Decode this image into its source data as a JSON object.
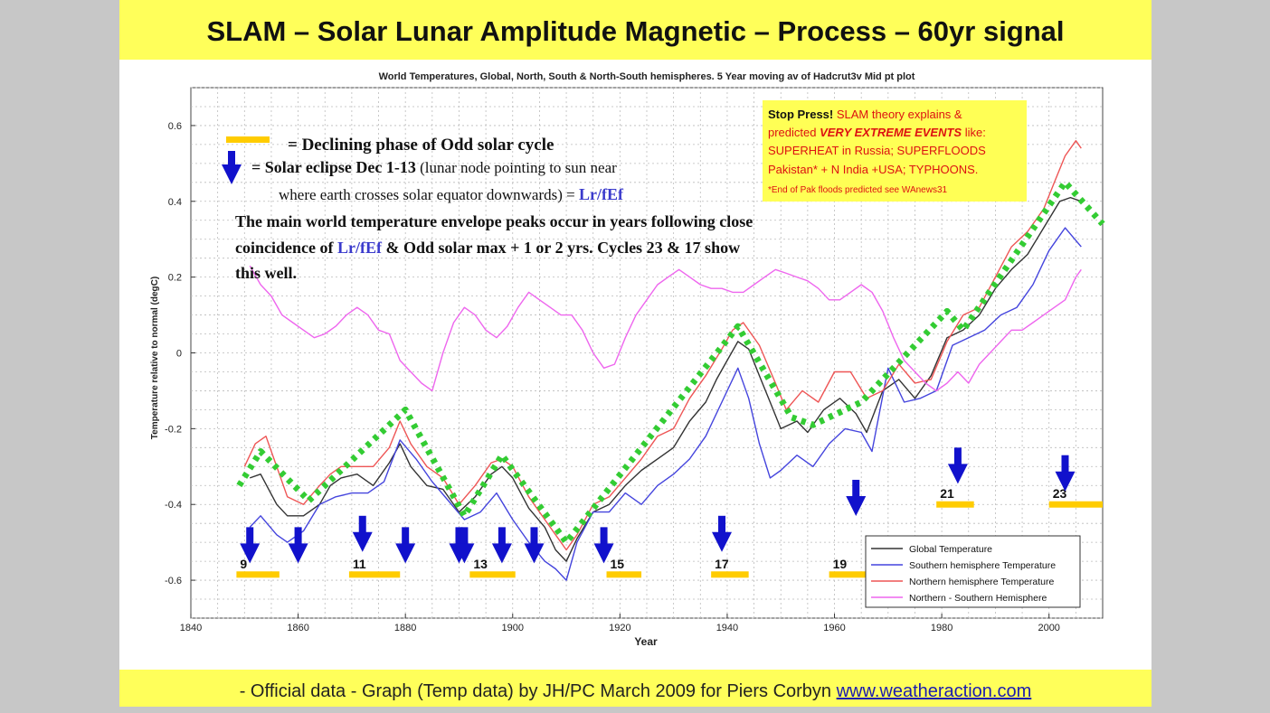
{
  "banner": {
    "title": "SLAM – Solar Lunar Amplitude Magnetic – Process – 60yr signal",
    "footer_text": "- Official data - Graph (Temp data) by JH/PC March 2009 for Piers Corbyn ",
    "footer_link": "www.weatheraction.com"
  },
  "chart_data": {
    "type": "line",
    "title": "World Temperatures, Global, North, South & North-South hemispheres. 5 Year moving av of Hadcrut3v Mid pt plot",
    "xlabel": "Year",
    "ylabel": "Temperature relative to normal (degC)",
    "xlim": [
      1840,
      2010
    ],
    "ylim": [
      -0.7,
      0.7
    ],
    "xticks": [
      1840,
      1860,
      1880,
      1900,
      1920,
      1940,
      1960,
      1980,
      2000
    ],
    "yticks": [
      -0.6,
      -0.4,
      -0.2,
      0,
      0.2,
      0.4,
      0.6
    ],
    "grid": true,
    "legend_position": "bottom-right",
    "series": [
      {
        "name": "Global Temperature",
        "color": "#333333",
        "x": [
          1851,
          1853,
          1856,
          1858,
          1861,
          1864,
          1866,
          1868,
          1871,
          1874,
          1877,
          1879,
          1881,
          1884,
          1887,
          1890,
          1893,
          1896,
          1898,
          1900,
          1903,
          1906,
          1908,
          1910,
          1912,
          1915,
          1918,
          1921,
          1924,
          1927,
          1930,
          1933,
          1936,
          1938,
          1940,
          1942,
          1944,
          1946,
          1948,
          1950,
          1953,
          1955,
          1958,
          1961,
          1964,
          1966,
          1969,
          1972,
          1975,
          1978,
          1981,
          1984,
          1987,
          1990,
          1993,
          1996,
          1999,
          2002,
          2004,
          2006
        ],
        "y": [
          -0.33,
          -0.32,
          -0.4,
          -0.43,
          -0.43,
          -0.4,
          -0.35,
          -0.33,
          -0.32,
          -0.35,
          -0.29,
          -0.24,
          -0.3,
          -0.35,
          -0.36,
          -0.42,
          -0.38,
          -0.32,
          -0.3,
          -0.33,
          -0.41,
          -0.46,
          -0.52,
          -0.55,
          -0.49,
          -0.42,
          -0.4,
          -0.35,
          -0.31,
          -0.28,
          -0.25,
          -0.18,
          -0.13,
          -0.07,
          -0.02,
          0.03,
          0.01,
          -0.06,
          -0.13,
          -0.2,
          -0.18,
          -0.21,
          -0.15,
          -0.12,
          -0.16,
          -0.21,
          -0.1,
          -0.07,
          -0.12,
          -0.06,
          0.04,
          0.06,
          0.1,
          0.17,
          0.22,
          0.26,
          0.33,
          0.4,
          0.41,
          0.4
        ]
      },
      {
        "name": "Southern hemisphere Temperature",
        "color": "#4444dd",
        "x": [
          1851,
          1853,
          1856,
          1858,
          1861,
          1864,
          1867,
          1870,
          1873,
          1876,
          1879,
          1882,
          1885,
          1888,
          1891,
          1894,
          1897,
          1900,
          1903,
          1906,
          1908,
          1910,
          1912,
          1915,
          1918,
          1921,
          1924,
          1927,
          1930,
          1933,
          1936,
          1939,
          1942,
          1944,
          1946,
          1948,
          1950,
          1953,
          1956,
          1959,
          1962,
          1965,
          1967,
          1970,
          1973,
          1976,
          1979,
          1982,
          1985,
          1988,
          1991,
          1994,
          1997,
          2000,
          2003,
          2006
        ],
        "y": [
          -0.46,
          -0.43,
          -0.48,
          -0.5,
          -0.47,
          -0.4,
          -0.38,
          -0.37,
          -0.37,
          -0.34,
          -0.23,
          -0.28,
          -0.34,
          -0.39,
          -0.44,
          -0.42,
          -0.37,
          -0.44,
          -0.5,
          -0.55,
          -0.57,
          -0.6,
          -0.5,
          -0.42,
          -0.42,
          -0.37,
          -0.4,
          -0.35,
          -0.32,
          -0.28,
          -0.22,
          -0.13,
          -0.04,
          -0.12,
          -0.24,
          -0.33,
          -0.31,
          -0.27,
          -0.3,
          -0.24,
          -0.2,
          -0.21,
          -0.26,
          -0.04,
          -0.13,
          -0.12,
          -0.1,
          0.02,
          0.04,
          0.06,
          0.1,
          0.12,
          0.18,
          0.27,
          0.33,
          0.28
        ]
      },
      {
        "name": "Northern hemisphere Temperature",
        "color": "#ee5555",
        "x": [
          1850,
          1852,
          1854,
          1856,
          1858,
          1861,
          1864,
          1866,
          1868,
          1871,
          1874,
          1877,
          1879,
          1881,
          1884,
          1887,
          1890,
          1893,
          1896,
          1898,
          1900,
          1903,
          1906,
          1908,
          1910,
          1912,
          1915,
          1918,
          1921,
          1924,
          1927,
          1930,
          1933,
          1936,
          1939,
          1941,
          1943,
          1946,
          1949,
          1951,
          1954,
          1957,
          1960,
          1963,
          1966,
          1969,
          1972,
          1975,
          1978,
          1981,
          1984,
          1987,
          1990,
          1993,
          1996,
          1999,
          2001,
          2003,
          2005,
          2006
        ],
        "y": [
          -0.3,
          -0.24,
          -0.22,
          -0.3,
          -0.38,
          -0.4,
          -0.35,
          -0.32,
          -0.3,
          -0.3,
          -0.3,
          -0.25,
          -0.18,
          -0.24,
          -0.3,
          -0.33,
          -0.4,
          -0.35,
          -0.29,
          -0.28,
          -0.3,
          -0.38,
          -0.44,
          -0.48,
          -0.52,
          -0.48,
          -0.4,
          -0.38,
          -0.33,
          -0.28,
          -0.22,
          -0.2,
          -0.12,
          -0.06,
          0.01,
          0.06,
          0.08,
          0.02,
          -0.08,
          -0.15,
          -0.1,
          -0.13,
          -0.05,
          -0.05,
          -0.12,
          -0.1,
          -0.03,
          -0.08,
          -0.07,
          0.03,
          0.1,
          0.12,
          0.2,
          0.28,
          0.32,
          0.38,
          0.45,
          0.52,
          0.56,
          0.54
        ]
      },
      {
        "name": "Northern - Southern Hemisphere",
        "color": "#ee66ee",
        "x": [
          1851,
          1853,
          1855,
          1857,
          1859,
          1861,
          1863,
          1865,
          1867,
          1869,
          1871,
          1873,
          1875,
          1877,
          1879,
          1881,
          1883,
          1885,
          1887,
          1889,
          1891,
          1893,
          1895,
          1897,
          1899,
          1901,
          1903,
          1905,
          1907,
          1909,
          1911,
          1913,
          1915,
          1917,
          1919,
          1921,
          1923,
          1925,
          1927,
          1929,
          1931,
          1933,
          1935,
          1937,
          1939,
          1941,
          1943,
          1945,
          1947,
          1949,
          1951,
          1953,
          1955,
          1957,
          1959,
          1961,
          1963,
          1965,
          1967,
          1969,
          1971,
          1973,
          1975,
          1977,
          1979,
          1981,
          1983,
          1985,
          1987,
          1989,
          1991,
          1993,
          1995,
          1997,
          1999,
          2001,
          2003,
          2005,
          2006
        ],
        "y": [
          0.23,
          0.18,
          0.15,
          0.1,
          0.08,
          0.06,
          0.04,
          0.05,
          0.07,
          0.1,
          0.12,
          0.1,
          0.06,
          0.05,
          -0.02,
          -0.05,
          -0.08,
          -0.1,
          0.0,
          0.08,
          0.12,
          0.1,
          0.06,
          0.04,
          0.07,
          0.12,
          0.16,
          0.14,
          0.12,
          0.1,
          0.1,
          0.06,
          0.0,
          -0.04,
          -0.03,
          0.04,
          0.1,
          0.14,
          0.18,
          0.2,
          0.22,
          0.2,
          0.18,
          0.17,
          0.17,
          0.16,
          0.16,
          0.18,
          0.2,
          0.22,
          0.21,
          0.2,
          0.19,
          0.17,
          0.14,
          0.14,
          0.16,
          0.18,
          0.16,
          0.11,
          0.04,
          -0.02,
          -0.05,
          -0.08,
          -0.1,
          -0.08,
          -0.05,
          -0.08,
          -0.03,
          0.0,
          0.03,
          0.06,
          0.06,
          0.08,
          0.1,
          0.12,
          0.14,
          0.2,
          0.22
        ]
      },
      {
        "name": "",
        "color": "#33cc33",
        "style": "dotted",
        "x": [
          1849,
          1853,
          1862,
          1880,
          1891,
          1898,
          1910,
          1942,
          1952,
          1956,
          1965,
          1981,
          1984,
          2003,
          2010
        ],
        "y": [
          -0.35,
          -0.26,
          -0.39,
          -0.15,
          -0.43,
          -0.27,
          -0.5,
          0.07,
          -0.17,
          -0.19,
          -0.13,
          0.11,
          0.06,
          0.45,
          0.34
        ]
      }
    ],
    "eclipse_arrows_years": [
      1851,
      1860,
      1872,
      1880,
      1890,
      1891,
      1898,
      1904,
      1917,
      1939,
      1964,
      1983,
      2003
    ],
    "odd_cycles": [
      {
        "label": "9",
        "start": 1848.5,
        "end": 1856.5
      },
      {
        "label": "11",
        "start": 1869.5,
        "end": 1879
      },
      {
        "label": "13",
        "start": 1892,
        "end": 1900.5
      },
      {
        "label": "15",
        "start": 1917.5,
        "end": 1924
      },
      {
        "label": "17",
        "start": 1937,
        "end": 1944
      },
      {
        "label": "19",
        "start": 1959,
        "end": 1966
      },
      {
        "label": "21",
        "start": 1979,
        "end": 1986
      },
      {
        "label": "23",
        "start": 2000,
        "end": 2010
      }
    ]
  },
  "annotations": {
    "key_bar_text": "= Declining phase of Odd solar cycle",
    "key_arrow_text_a": "= Solar eclipse Dec 1-13",
    "key_arrow_text_b": " (lunar node pointing to sun near",
    "key_arrow_text_c": "where earth crosses solar equator downwards) = ",
    "key_arrow_text_d": "Lr/fEf",
    "envelope_line1": "The main world temperature envelope peaks occur in years following close",
    "envelope_line2a": "coincidence of ",
    "envelope_line2b": "Lr/fEf",
    "envelope_line2c": " & Odd solar max + 1 or 2 yrs. Cycles 23 & 17 show",
    "envelope_line3": "this well."
  },
  "stop_press": {
    "l1a": "Stop Press! ",
    "l1b": "SLAM theory explains &",
    "l2a": "predicted ",
    "l2b": "VERY EXTREME EVENTS",
    "l2c": " like:",
    "l3": "SUPERHEAT in Russia; SUPERFLOODS",
    "l4": "Pakistan* + N India +USA; TYPHOONS.",
    "l5": "*End of Pak floods predicted see WAnews31"
  },
  "colors": {
    "banner": "#ffff5a",
    "cycle_bar": "#ffcc00",
    "arrow": "#1111cc",
    "envelope": "#33cc33"
  }
}
